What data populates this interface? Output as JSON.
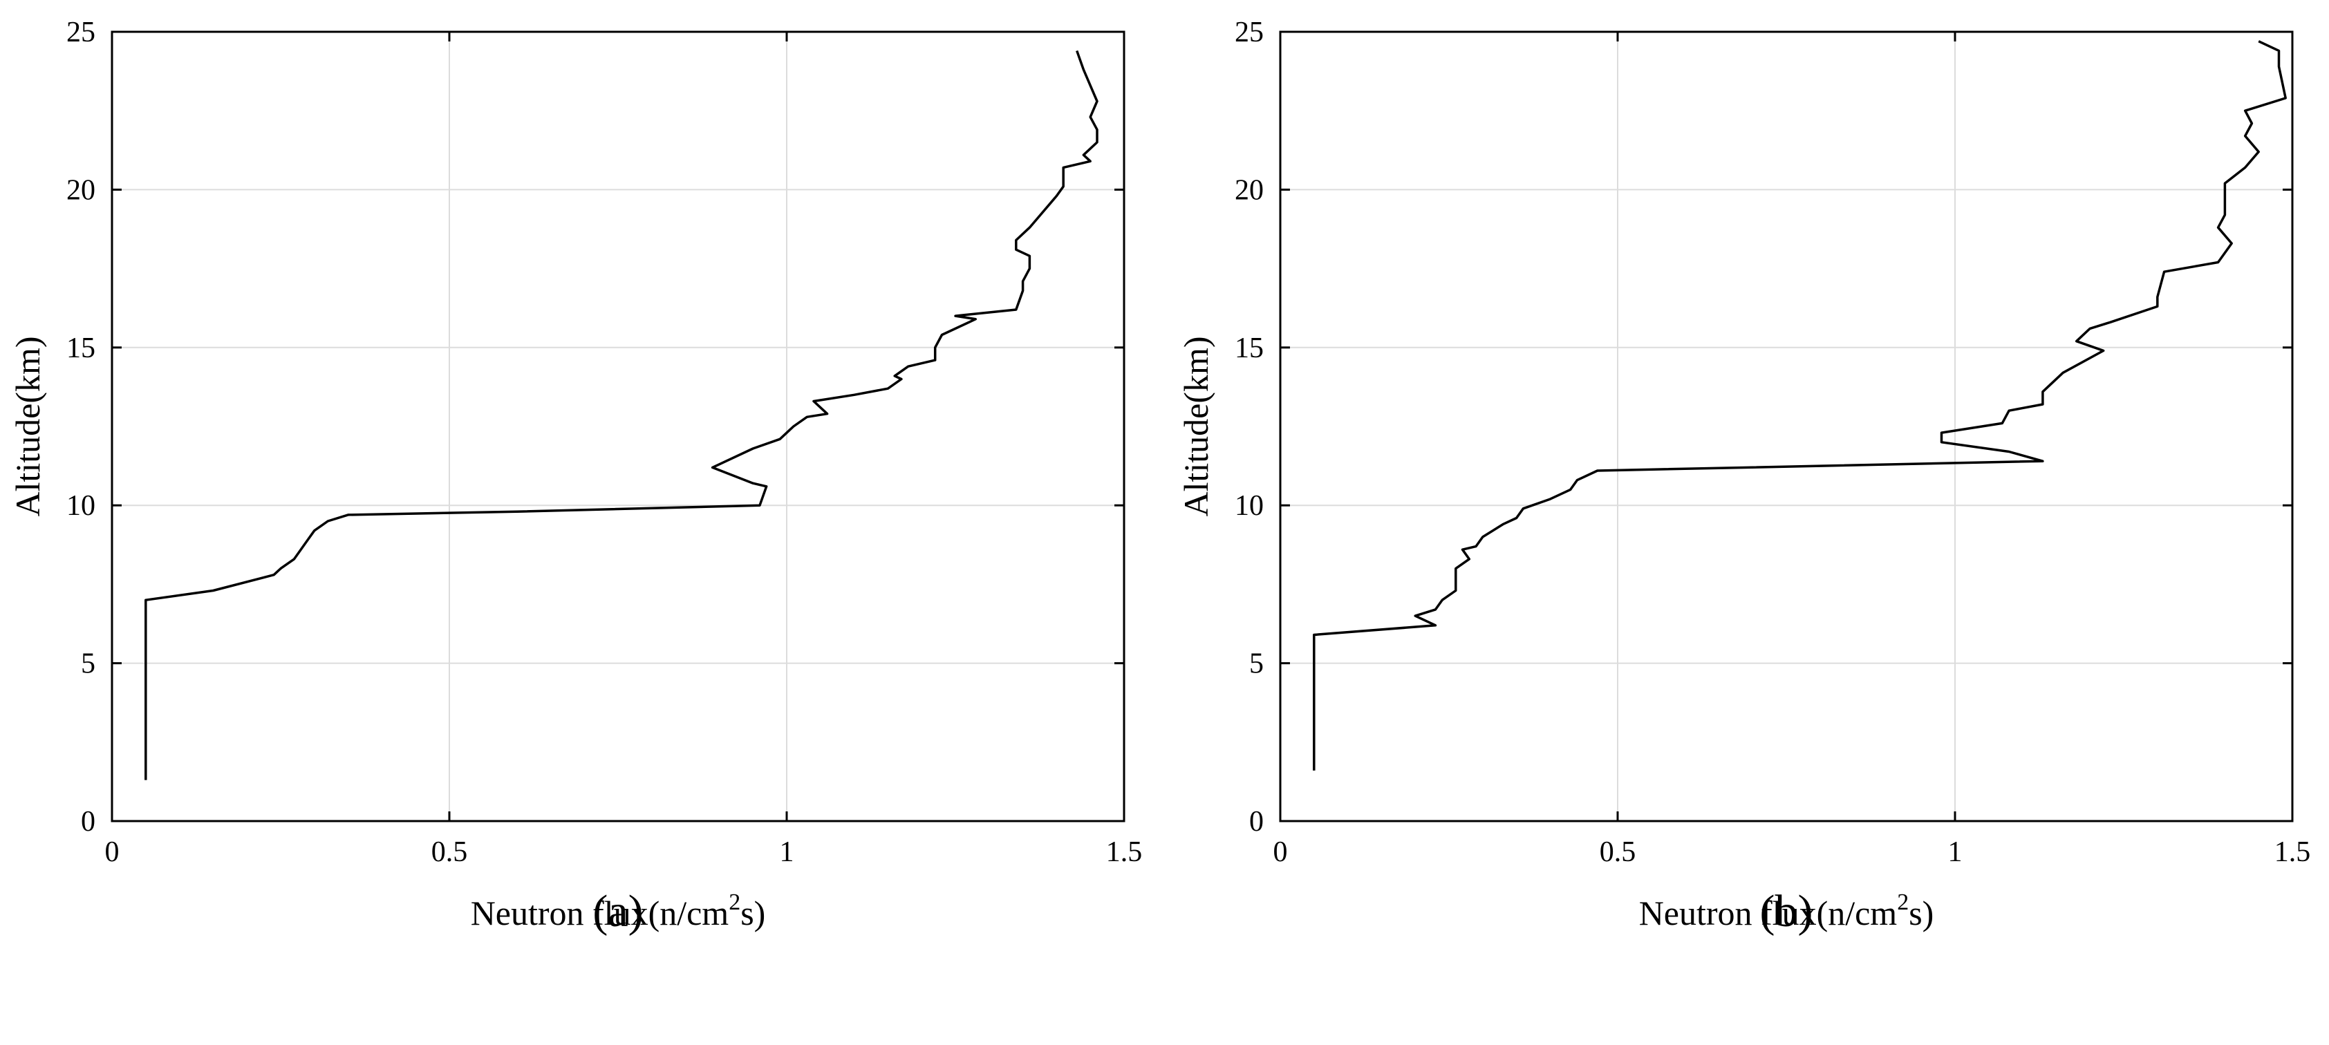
{
  "chart_data": [
    {
      "type": "line",
      "panel_label": "(a)",
      "xlabel_prefix": "Neutron flux(n/cm",
      "xlabel_sup": "2",
      "xlabel_suffix": "s)",
      "ylabel": "Altitude(km)",
      "xlim": [
        0,
        1.5
      ],
      "ylim": [
        0,
        25
      ],
      "xticks": [
        0,
        0.5,
        1,
        1.5
      ],
      "xtick_labels": [
        "0",
        "0.5",
        "1",
        "1.5"
      ],
      "yticks": [
        0,
        5,
        10,
        15,
        20,
        25
      ],
      "ytick_labels": [
        "0",
        "5",
        "10",
        "15",
        "20",
        "25"
      ],
      "grid": true,
      "series": [
        {
          "color": "#000000",
          "x": [
            0.05,
            0.05,
            0.15,
            0.24,
            0.25,
            0.27,
            0.29,
            0.3,
            0.32,
            0.35,
            0.6,
            0.96,
            0.97,
            0.95,
            0.89,
            0.95,
            0.99,
            1.01,
            1.03,
            1.06,
            1.04,
            1.1,
            1.15,
            1.17,
            1.16,
            1.18,
            1.22,
            1.22,
            1.23,
            1.27,
            1.25,
            1.28,
            1.25,
            1.34,
            1.35,
            1.35,
            1.36,
            1.36,
            1.34,
            1.34,
            1.36,
            1.38,
            1.4,
            1.41,
            1.41,
            1.45,
            1.44,
            1.46,
            1.46,
            1.45,
            1.46,
            1.45,
            1.44,
            1.43
          ],
          "y": [
            1.3,
            7.0,
            7.3,
            7.8,
            8.0,
            8.3,
            8.9,
            9.2,
            9.5,
            9.7,
            9.8,
            10.0,
            10.6,
            10.7,
            11.2,
            11.8,
            12.1,
            12.5,
            12.8,
            12.9,
            13.3,
            13.5,
            13.7,
            14.0,
            14.1,
            14.4,
            14.6,
            15.0,
            15.4,
            15.8,
            15.6,
            15.9,
            16.0,
            16.2,
            16.8,
            17.1,
            17.5,
            17.9,
            18.1,
            18.4,
            18.8,
            19.3,
            19.8,
            20.1,
            20.7,
            20.9,
            21.1,
            21.5,
            21.9,
            22.3,
            22.8,
            23.3,
            23.8,
            24.4
          ]
        }
      ]
    },
    {
      "type": "line",
      "panel_label": "(b)",
      "xlabel_prefix": "Neutron flux(n/cm",
      "xlabel_sup": "2",
      "xlabel_suffix": "s)",
      "ylabel": "Altitude(km)",
      "xlim": [
        0,
        1.5
      ],
      "ylim": [
        0,
        25
      ],
      "xticks": [
        0,
        0.5,
        1,
        1.5
      ],
      "xtick_labels": [
        "0",
        "0.5",
        "1",
        "1.5"
      ],
      "yticks": [
        0,
        5,
        10,
        15,
        20,
        25
      ],
      "ytick_labels": [
        "0",
        "5",
        "10",
        "15",
        "20",
        "25"
      ],
      "grid": true,
      "series": [
        {
          "color": "#000000",
          "x": [
            0.05,
            0.05,
            0.23,
            0.2,
            0.23,
            0.24,
            0.26,
            0.26,
            0.28,
            0.27,
            0.29,
            0.3,
            0.33,
            0.35,
            0.36,
            0.4,
            0.43,
            0.44,
            0.47,
            1.13,
            1.08,
            0.98,
            0.98,
            1.07,
            1.08,
            1.13,
            1.13,
            1.16,
            1.22,
            1.18,
            1.2,
            1.23,
            1.3,
            1.3,
            1.31,
            1.39,
            1.41,
            1.39,
            1.4,
            1.4,
            1.43,
            1.45,
            1.43,
            1.44,
            1.43,
            1.49,
            1.48,
            1.48,
            1.45
          ],
          "y": [
            1.6,
            5.9,
            6.2,
            6.5,
            6.7,
            7.0,
            7.3,
            8.0,
            8.3,
            8.6,
            8.7,
            9.0,
            9.4,
            9.6,
            9.9,
            10.2,
            10.5,
            10.8,
            11.1,
            11.4,
            11.7,
            12.0,
            12.3,
            12.6,
            13.0,
            13.2,
            13.6,
            14.2,
            14.9,
            15.2,
            15.6,
            15.8,
            16.3,
            16.6,
            17.4,
            17.7,
            18.3,
            18.8,
            19.2,
            20.2,
            20.7,
            21.2,
            21.7,
            22.1,
            22.5,
            22.9,
            23.9,
            24.4,
            24.7
          ]
        }
      ]
    }
  ]
}
